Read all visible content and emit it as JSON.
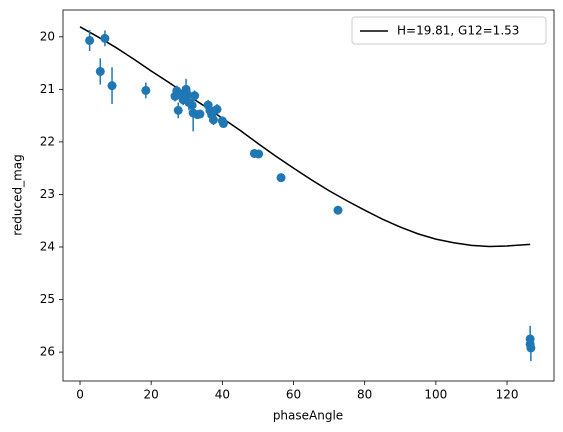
{
  "chart_data": {
    "type": "scatter",
    "xlabel": "phaseAngle",
    "ylabel": "reduced_mag",
    "xlim": [
      -4.78,
      133.2
    ],
    "ylim": [
      26.55,
      19.49
    ],
    "xticks": [
      0,
      20,
      40,
      60,
      80,
      100,
      120
    ],
    "yticks": [
      20,
      21,
      22,
      23,
      24,
      25,
      26
    ],
    "legend": "upper right",
    "series": [
      {
        "name": "H=19.81, G12=1.53",
        "type": "line",
        "color": "#000000",
        "x": [
          0,
          5,
          10,
          15,
          20,
          25,
          30,
          35,
          40,
          45,
          50,
          55,
          60,
          65,
          70,
          75,
          80,
          85,
          90,
          95,
          100,
          105,
          110,
          115,
          120,
          126.5
        ],
        "values": [
          19.81,
          20.0,
          20.2,
          20.42,
          20.65,
          20.87,
          21.1,
          21.32,
          21.55,
          21.78,
          22.03,
          22.27,
          22.5,
          22.72,
          22.93,
          23.12,
          23.3,
          23.47,
          23.62,
          23.75,
          23.85,
          23.92,
          23.97,
          23.99,
          23.98,
          23.95
        ]
      },
      {
        "type": "errorbar",
        "color": "#1f77b4",
        "x": [
          2.7,
          5.7,
          7,
          9,
          18.5,
          26.7,
          27.2,
          27.6,
          28,
          29,
          29.8,
          30.2,
          30.6,
          31.5,
          31.8,
          32.2,
          33,
          33.7,
          36,
          36.5,
          37,
          37.5,
          38.5,
          40,
          40.3,
          49,
          50.2,
          56.5,
          72.5,
          126.5,
          126.7,
          126.5
        ],
        "values": [
          20.07,
          20.66,
          20.03,
          20.93,
          21.02,
          21.13,
          21.03,
          21.4,
          21.1,
          21.2,
          21.0,
          21.1,
          21.25,
          21.3,
          21.45,
          21.12,
          21.48,
          21.47,
          21.3,
          21.4,
          21.48,
          21.58,
          21.38,
          21.6,
          21.65,
          22.22,
          22.23,
          22.68,
          23.3,
          25.75,
          25.92,
          25.85
        ],
        "errors": [
          0.2,
          0.25,
          0.15,
          0.35,
          0.15,
          0.1,
          0.1,
          0.15,
          0.1,
          0.1,
          0.2,
          0.1,
          0.15,
          0.1,
          0.35,
          0.1,
          0.05,
          0.05,
          0.1,
          0.1,
          0.1,
          0.1,
          0.1,
          0.05,
          0.05,
          0.05,
          0.05,
          0.05,
          0.05,
          0.25,
          0.25,
          0.15
        ]
      }
    ]
  }
}
